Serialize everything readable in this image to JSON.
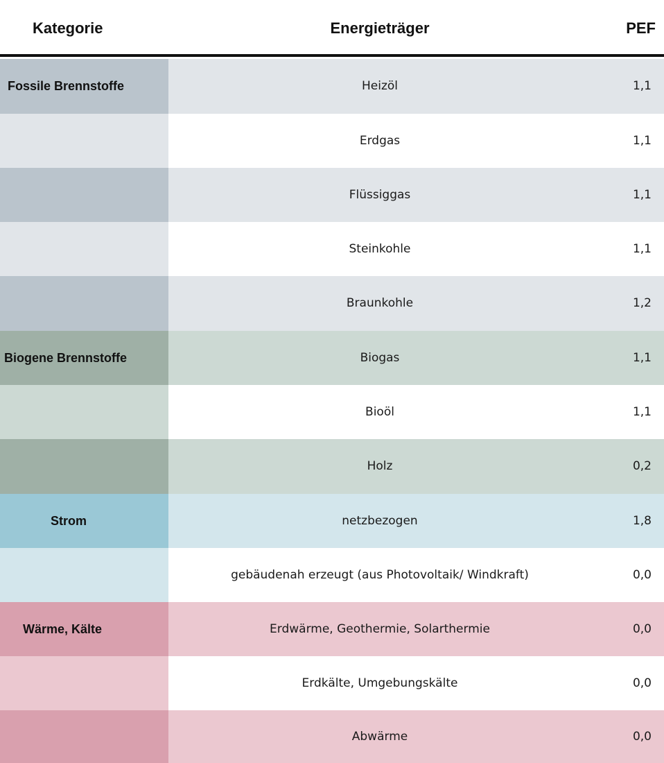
{
  "header": {
    "kategorie": "Kategorie",
    "energietraeger": "Energieträger",
    "pef": "PEF"
  },
  "colors": {
    "fossil_dark": "#bac4cc",
    "fossil_light": "#e1e5e9",
    "bio_dark": "#9fb0a6",
    "bio_light": "#ccd9d3",
    "strom_dark": "#9ac8d6",
    "strom_light": "#d3e6ec",
    "waerme_dark": "#d9a0ae",
    "waerme_light": "#ebc8d0",
    "white": "#ffffff"
  },
  "rows": [
    {
      "category": "Fossile Brennstoffe",
      "carrier": "Heizöl",
      "pef": "1,1"
    },
    {
      "category": "",
      "carrier": "Erdgas",
      "pef": "1,1"
    },
    {
      "category": "",
      "carrier": "Flüssiggas",
      "pef": "1,1"
    },
    {
      "category": "",
      "carrier": "Steinkohle",
      "pef": "1,1"
    },
    {
      "category": "",
      "carrier": "Braunkohle",
      "pef": "1,2"
    },
    {
      "category": "Biogene Brennstoffe",
      "carrier": "Biogas",
      "pef": "1,1"
    },
    {
      "category": "",
      "carrier": "Bioöl",
      "pef": "1,1"
    },
    {
      "category": "",
      "carrier": "Holz",
      "pef": "0,2"
    },
    {
      "category": "Strom",
      "carrier": "netzbezogen",
      "pef": "1,8"
    },
    {
      "category": "",
      "carrier": "gebäudenah erzeugt (aus Photovoltaik/ Windkraft)",
      "pef": "0,0"
    },
    {
      "category": "Wärme, Kälte",
      "carrier": "Erdwärme, Geothermie, Solarthermie",
      "pef": "0,0"
    },
    {
      "category": "",
      "carrier": "Erdkälte, Umgebungskälte",
      "pef": "0,0"
    },
    {
      "category": "",
      "carrier": "Abwärme",
      "pef": "0,0"
    }
  ]
}
